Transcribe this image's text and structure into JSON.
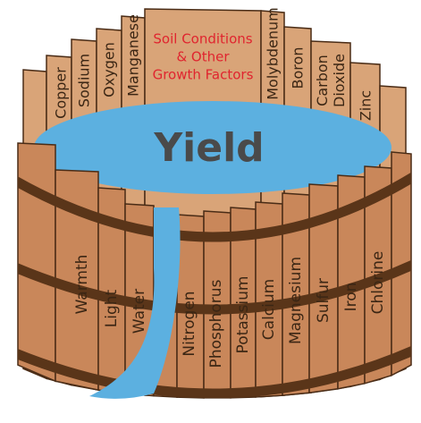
{
  "title": "Yield",
  "back_staves": [
    {
      "lines": [
        "Copper"
      ]
    },
    {
      "lines": [
        "Sodium"
      ]
    },
    {
      "lines": [
        "Oxygen"
      ]
    },
    {
      "lines": [
        "Manganese"
      ]
    },
    {
      "lines": [
        "Soil Conditions",
        "& Other",
        "Growth Factors"
      ]
    },
    {
      "lines": [
        "Molybdenum"
      ]
    },
    {
      "lines": [
        "Boron"
      ]
    },
    {
      "lines": [
        "Carbon",
        "Dioxide"
      ]
    },
    {
      "lines": [
        "Zinc"
      ]
    }
  ],
  "front_staves": [
    {
      "lines": [
        "Warmth"
      ]
    },
    {
      "lines": [
        "Light"
      ]
    },
    {
      "lines": [
        "Water"
      ]
    },
    {
      "lines": [
        "Nitrogen"
      ]
    },
    {
      "lines": [
        "Phosphorus"
      ]
    },
    {
      "lines": [
        "Potassium"
      ]
    },
    {
      "lines": [
        "Calcium"
      ]
    },
    {
      "lines": [
        "Magnesium"
      ]
    },
    {
      "lines": [
        "Sulfur"
      ]
    },
    {
      "lines": [
        "Iron"
      ]
    },
    {
      "lines": [
        "Chlorine"
      ]
    }
  ]
}
